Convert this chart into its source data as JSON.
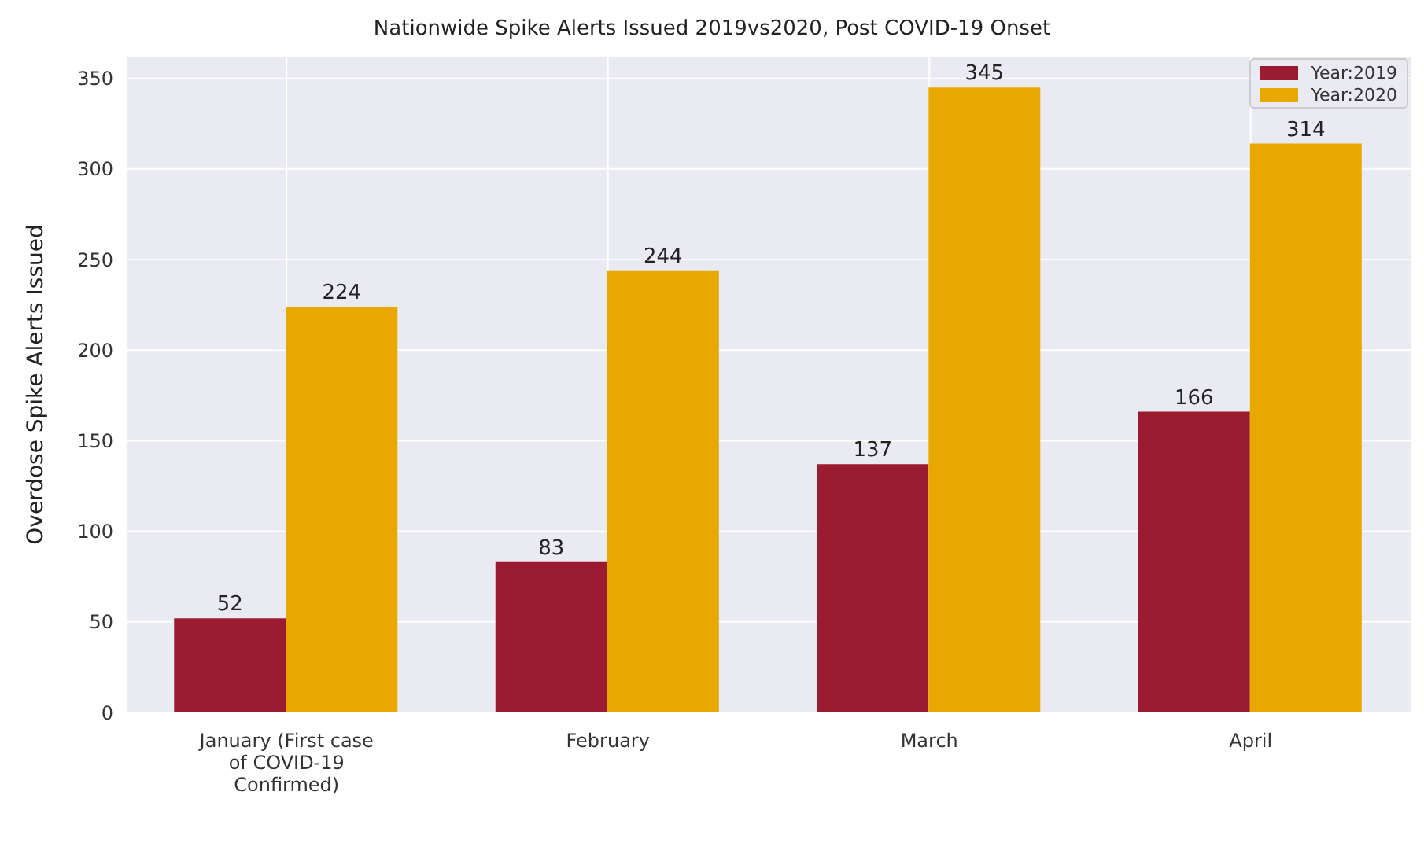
{
  "chart_data": {
    "type": "bar",
    "title": "Nationwide Spike Alerts Issued 2019vs2020, Post COVID-19 Onset",
    "ylabel": "Overdose Spike Alerts Issued",
    "categories": [
      "January (First case of COVID-19 Confirmed)",
      "February",
      "March",
      "April"
    ],
    "series": [
      {
        "name": "Year:2019",
        "color": "#9b1b30",
        "values": [
          52,
          83,
          137,
          166
        ]
      },
      {
        "name": "Year:2020",
        "color": "#e8a800",
        "values": [
          224,
          244,
          345,
          314
        ]
      }
    ],
    "ylim": [
      0,
      362
    ],
    "yticks": [
      0,
      50,
      100,
      150,
      200,
      250,
      300,
      350
    ],
    "grid": true,
    "legend": "top right",
    "data_labels": true
  }
}
